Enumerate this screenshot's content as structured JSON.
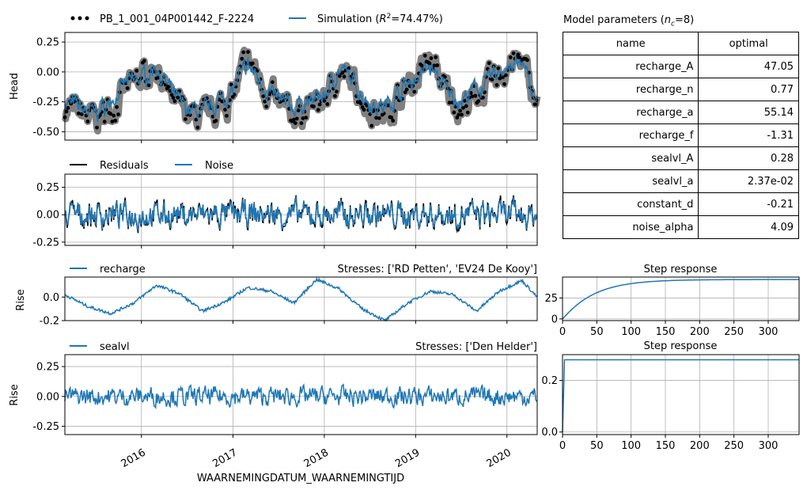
{
  "chart_data": [
    {
      "type": "line",
      "panel": "head",
      "ylabel": "Head",
      "ylim": [
        -0.57,
        0.33
      ],
      "yticks": [
        "0.25",
        "0.00",
        "-0.25",
        "-0.50"
      ],
      "ytick_values": [
        0.25,
        0.0,
        -0.25,
        -0.5
      ],
      "xlim": [
        "2015-03-01",
        "2020-05-01"
      ],
      "grid": true,
      "legend_placement": "top",
      "series": [
        {
          "name": "PB_1_001_04P001442_F-2224",
          "style": "black dots with grey band",
          "x": [
            "2015-03",
            "2015-05",
            "2015-07",
            "2015-09",
            "2015-11",
            "2016-01",
            "2016-03",
            "2016-05",
            "2016-07",
            "2016-09",
            "2016-11",
            "2017-01",
            "2017-03",
            "2017-05",
            "2017-07",
            "2017-09",
            "2017-11",
            "2018-01",
            "2018-03",
            "2018-05",
            "2018-07",
            "2018-09",
            "2018-11",
            "2019-01",
            "2019-03",
            "2019-05",
            "2019-07",
            "2019-09",
            "2019-11",
            "2020-01",
            "2020-03",
            "2020-05"
          ],
          "values": [
            -0.3,
            -0.35,
            -0.4,
            -0.3,
            -0.15,
            -0.05,
            0.05,
            -0.25,
            -0.35,
            -0.4,
            -0.3,
            -0.2,
            0.1,
            -0.1,
            -0.3,
            -0.35,
            -0.3,
            -0.25,
            0.0,
            -0.1,
            -0.3,
            -0.35,
            -0.2,
            -0.05,
            0.1,
            -0.15,
            -0.3,
            -0.2,
            -0.1,
            0.05,
            0.1,
            -0.3
          ]
        },
        {
          "name": "Simulation ($R^2$=74.47%)",
          "label_prefix": "Simulation (",
          "r2_text": "R",
          "r2_sup": "2",
          "r2_value": "=74.47%)",
          "x": [
            "2015-03",
            "2015-05",
            "2015-07",
            "2015-09",
            "2015-11",
            "2016-01",
            "2016-03",
            "2016-05",
            "2016-07",
            "2016-09",
            "2016-11",
            "2017-01",
            "2017-03",
            "2017-05",
            "2017-07",
            "2017-09",
            "2017-11",
            "2018-01",
            "2018-03",
            "2018-05",
            "2018-07",
            "2018-09",
            "2018-11",
            "2019-01",
            "2019-03",
            "2019-05",
            "2019-07",
            "2019-09",
            "2019-11",
            "2020-01",
            "2020-03",
            "2020-05"
          ],
          "values": [
            -0.25,
            -0.3,
            -0.35,
            -0.25,
            -0.1,
            -0.05,
            0.05,
            -0.2,
            -0.3,
            -0.35,
            -0.25,
            -0.15,
            0.05,
            -0.1,
            -0.25,
            -0.3,
            -0.25,
            -0.2,
            0.02,
            -0.1,
            -0.25,
            -0.3,
            -0.15,
            -0.05,
            0.05,
            -0.15,
            -0.25,
            -0.15,
            -0.05,
            0.05,
            0.05,
            -0.25
          ]
        }
      ]
    },
    {
      "type": "line",
      "panel": "residuals",
      "ylim": [
        -0.28,
        0.37
      ],
      "yticks": [
        "0.25",
        "0.00",
        "-0.25"
      ],
      "ytick_values": [
        0.25,
        0.0,
        -0.25
      ],
      "xlim": [
        "2015-03-01",
        "2020-05-01"
      ],
      "grid": true,
      "legend_placement": "top",
      "series": [
        {
          "name": "Residuals",
          "color": "#000000"
        },
        {
          "name": "Noise",
          "color": "#1f77b4"
        }
      ]
    },
    {
      "type": "line",
      "panel": "recharge",
      "ylabel": "Rise",
      "ylim": [
        -0.2,
        0.17
      ],
      "yticks": [
        "0.0",
        "-0.2"
      ],
      "ytick_values": [
        0.0,
        -0.2
      ],
      "xlim": [
        "2015-03-01",
        "2020-05-01"
      ],
      "grid": true,
      "stresses_label": "Stresses: ['RD Petten', 'EV24 De Kooy']",
      "series": [
        {
          "name": "recharge",
          "x": [
            "2015-03",
            "2015-06",
            "2015-09",
            "2015-12",
            "2016-03",
            "2016-06",
            "2016-09",
            "2016-12",
            "2017-03",
            "2017-06",
            "2017-09",
            "2017-12",
            "2018-03",
            "2018-06",
            "2018-09",
            "2018-12",
            "2019-03",
            "2019-06",
            "2019-09",
            "2019-12",
            "2020-03",
            "2020-05"
          ],
          "values": [
            0.02,
            -0.08,
            -0.14,
            -0.05,
            0.1,
            0.03,
            -0.12,
            -0.04,
            0.08,
            0.05,
            -0.05,
            0.15,
            0.07,
            -0.1,
            -0.2,
            -0.05,
            0.05,
            0.02,
            -0.12,
            0.05,
            0.14,
            0.0
          ]
        }
      ]
    },
    {
      "type": "line",
      "panel": "sealvl",
      "ylabel": "Rise",
      "ylim": [
        -0.32,
        0.35
      ],
      "yticks": [
        "0.25",
        "0.00",
        "-0.25"
      ],
      "ytick_values": [
        0.25,
        0.0,
        -0.25
      ],
      "xlim": [
        "2015-03-01",
        "2020-05-01"
      ],
      "xlabel": "WAARNEMINGDATUM_WAARNEMINGTIJD",
      "xticks": [
        "2016",
        "2017",
        "2018",
        "2019",
        "2020"
      ],
      "grid": true,
      "stresses_label": "Stresses: ['Den Helder']",
      "series": [
        {
          "name": "sealvl"
        }
      ]
    },
    {
      "type": "line",
      "panel": "step-recharge",
      "title": "Step response",
      "xlim": [
        0,
        345
      ],
      "ylim": [
        -2,
        50
      ],
      "xticks": [
        "0",
        "50",
        "100",
        "150",
        "200",
        "250",
        "300"
      ],
      "xtick_values": [
        0,
        50,
        100,
        150,
        200,
        250,
        300
      ],
      "yticks": [
        "25",
        "0"
      ],
      "ytick_values": [
        25,
        0
      ],
      "grid": true,
      "asymptote": 47.05,
      "rate": 0.018
    },
    {
      "type": "line",
      "panel": "step-sealvl",
      "title": "Step response",
      "xlim": [
        0,
        345
      ],
      "ylim": [
        -0.01,
        0.3
      ],
      "xticks": [
        "0",
        "50",
        "100",
        "150",
        "200",
        "250",
        "300"
      ],
      "xtick_values": [
        0,
        50,
        100,
        150,
        200,
        250,
        300
      ],
      "yticks": [
        "0.2",
        "0.0"
      ],
      "ytick_values": [
        0.2,
        0.0
      ],
      "grid": true,
      "value": 0.28
    }
  ],
  "params_table": {
    "title_prefix": "Model parameters (",
    "title_n": "n",
    "title_sub": "c",
    "title_suffix": "=8)",
    "col_name": "name",
    "col_optimal": "optimal",
    "rows": [
      {
        "name": "recharge_A",
        "value": "47.05"
      },
      {
        "name": "recharge_n",
        "value": "0.77"
      },
      {
        "name": "recharge_a",
        "value": "55.14"
      },
      {
        "name": "recharge_f",
        "value": "-1.31"
      },
      {
        "name": "sealvl_A",
        "value": "0.28"
      },
      {
        "name": "sealvl_a",
        "value": "2.37e-02"
      },
      {
        "name": "constant_d",
        "value": "-0.21"
      },
      {
        "name": "noise_alpha",
        "value": "4.09"
      }
    ]
  },
  "colors": {
    "blue": "#1f77b4",
    "grey": "#808080",
    "black": "#000000",
    "grid": "#b0b0b0"
  }
}
